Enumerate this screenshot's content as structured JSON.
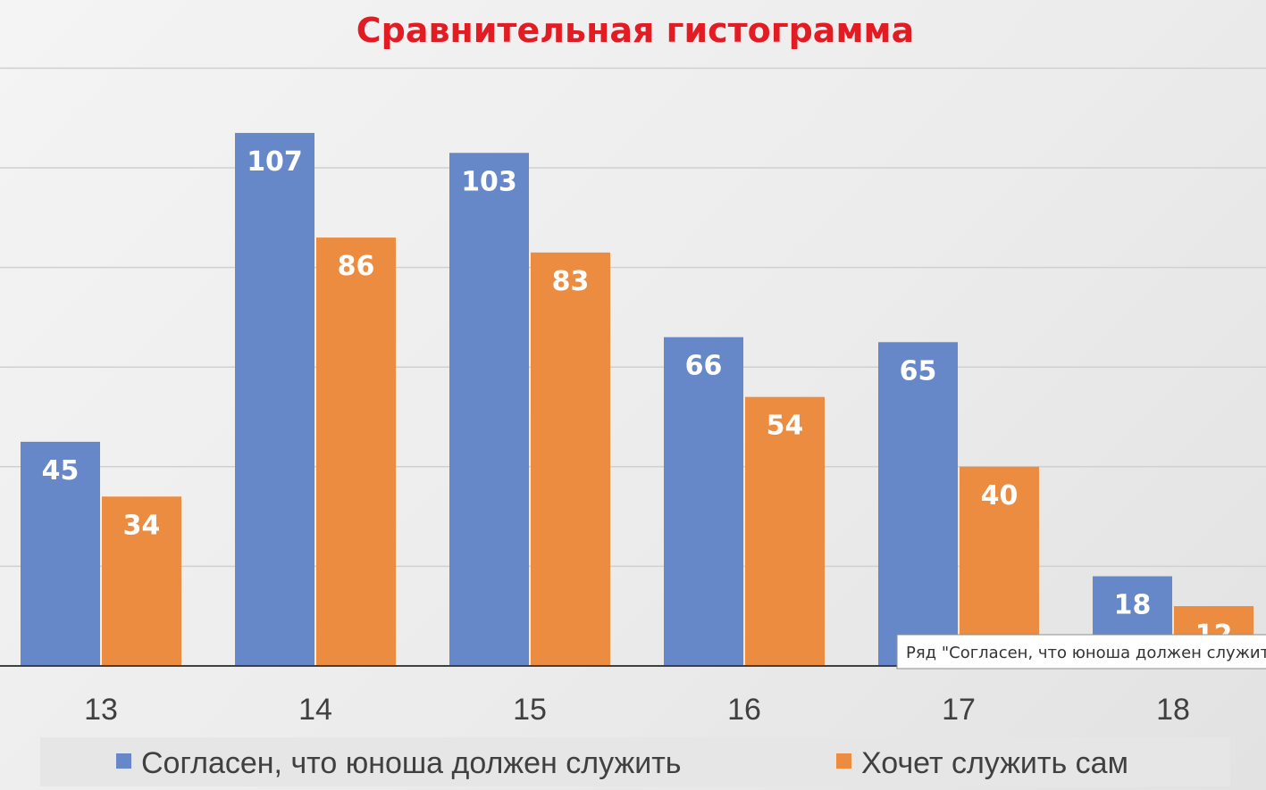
{
  "chart_data": {
    "type": "bar",
    "title": "Сравнительная гистограмма",
    "categories": [
      "13",
      "14",
      "15",
      "16",
      "17",
      "18"
    ],
    "series": [
      {
        "name": "Согласен, что юноша должен служить",
        "values": [
          45,
          107,
          103,
          66,
          65,
          18
        ],
        "color": "#6687c8"
      },
      {
        "name": "Хочет служить сам",
        "values": [
          34,
          86,
          83,
          54,
          40,
          12
        ],
        "color": "#ec8c40"
      }
    ],
    "ylim": [
      0,
      120
    ],
    "grid": true,
    "legend": "bottom"
  },
  "tooltip": {
    "text": "Ряд \"Согласен, что юноша должен служить\""
  },
  "colors": {
    "title": "#e31b23",
    "gridline": "#d0d0d0",
    "axis": "#404040"
  }
}
